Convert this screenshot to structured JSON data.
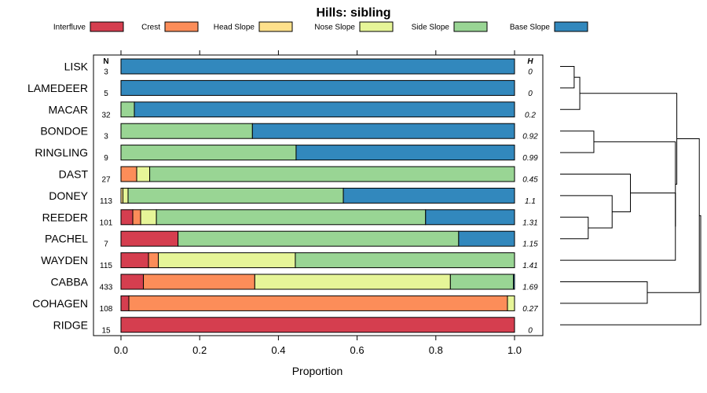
{
  "chart_data": {
    "type": "bar",
    "orientation": "horizontal",
    "stacked": true,
    "title": "Hills: sibling",
    "xlabel": "Proportion",
    "ylabel": "",
    "xlim": [
      0,
      1
    ],
    "x_ticks": [
      0.0,
      0.2,
      0.4,
      0.6,
      0.8,
      1.0
    ],
    "x_tick_labels": [
      "0.0",
      "0.2",
      "0.4",
      "0.6",
      "0.8",
      "1.0"
    ],
    "n_header": "N",
    "h_header": "H",
    "legend_position": "top",
    "legend": [
      {
        "name": "Interfluve",
        "color": "#d53e4f"
      },
      {
        "name": "Crest",
        "color": "#fc8d59"
      },
      {
        "name": "Head Slope",
        "color": "#fee08b"
      },
      {
        "name": "Nose Slope",
        "color": "#e6f598"
      },
      {
        "name": "Side Slope",
        "color": "#99d594"
      },
      {
        "name": "Base Slope",
        "color": "#3288bd"
      }
    ],
    "categories": [
      "LISK",
      "LAMEDEER",
      "MACAR",
      "BONDOE",
      "RINGLING",
      "DAST",
      "DONEY",
      "REEDER",
      "PACHEL",
      "WAYDEN",
      "CABBA",
      "COHAGEN",
      "RIDGE"
    ],
    "n_values": [
      "3",
      "5",
      "32",
      "3",
      "9",
      "27",
      "113",
      "101",
      "7",
      "115",
      "433",
      "108",
      "15"
    ],
    "h_values": [
      "0",
      "0",
      "0.2",
      "0.92",
      "0.99",
      "0.45",
      "1.1",
      "1.31",
      "1.15",
      "1.41",
      "1.69",
      "0.27",
      "0"
    ],
    "series": [
      {
        "name": "Interfluve",
        "values": [
          0,
          0,
          0,
          0,
          0,
          0,
          0,
          0.03,
          0.145,
          0.07,
          0.057,
          0.02,
          1.0
        ]
      },
      {
        "name": "Crest",
        "values": [
          0,
          0,
          0,
          0,
          0,
          0.04,
          0,
          0.02,
          0,
          0.025,
          0.283,
          0.962,
          0
        ]
      },
      {
        "name": "Head Slope",
        "values": [
          0,
          0,
          0,
          0,
          0,
          0,
          0.005,
          0,
          0,
          0,
          0,
          0,
          0
        ]
      },
      {
        "name": "Nose Slope",
        "values": [
          0,
          0,
          0,
          0,
          0,
          0.033,
          0.013,
          0.04,
          0,
          0.348,
          0.497,
          0.018,
          0
        ]
      },
      {
        "name": "Side Slope",
        "values": [
          0,
          0,
          0.034,
          0.334,
          0.445,
          0.927,
          0.547,
          0.684,
          0.713,
          0.557,
          0.16,
          0,
          0
        ]
      },
      {
        "name": "Base Slope",
        "values": [
          1.0,
          1.0,
          0.966,
          0.666,
          0.555,
          0,
          0.435,
          0.226,
          0.142,
          0,
          0.003,
          0,
          0
        ]
      }
    ],
    "dendrogram": [
      {
        "a": "LISK",
        "b": "LAMEDEER",
        "height": 0.1
      },
      {
        "a": "LISK+LAMEDEER",
        "b": "MACAR",
        "height": 0.14
      },
      {
        "a": "BONDOE",
        "b": "RINGLING",
        "height": 0.24
      },
      {
        "a": "REEDER",
        "b": "PACHEL",
        "height": 0.2
      },
      {
        "a": "DONEY",
        "b": "REEDER+PACHEL",
        "height": 0.37
      },
      {
        "a": "DAST",
        "b": "DONEY+REEDER+PACHEL",
        "height": 0.5
      },
      {
        "a": "DAST+DONEY+REEDER+PACHEL",
        "b": "WAYDEN",
        "height": 0.82
      },
      {
        "a": "BONDOE+RINGLING",
        "b": "DAST+DONEY+REEDER+PACHEL+WAYDEN",
        "height": 0.82
      },
      {
        "a": "LISK+LAMEDEER+MACAR",
        "b": "BONDOE+RINGLING+DAST+DONEY+REEDER+PACHEL+WAYDEN",
        "height": 0.83
      },
      {
        "a": "CABBA",
        "b": "COHAGEN",
        "height": 0.62
      },
      {
        "a": "LISK+LAMEDEER+MACAR+BONDOE+RINGLING+DAST+DONEY+REEDER+PACHEL+WAYDEN",
        "b": "CABBA+COHAGEN",
        "height": 0.99
      },
      {
        "a": "ALL_BUT_RIDGE",
        "b": "RIDGE",
        "height": 1.0
      }
    ]
  }
}
